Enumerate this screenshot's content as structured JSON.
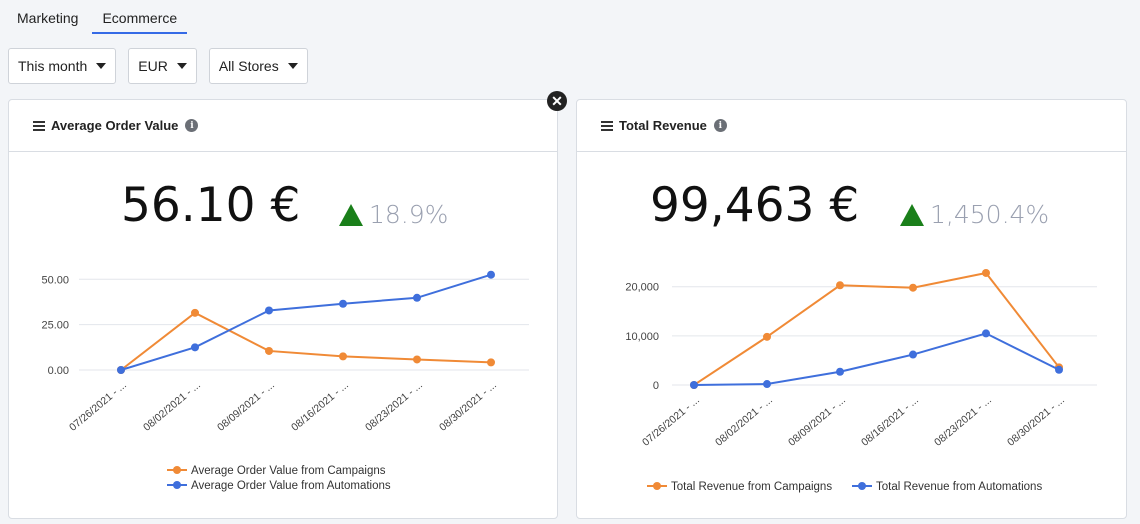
{
  "tabs": [
    {
      "label": "Marketing",
      "active": false
    },
    {
      "label": "Ecommerce",
      "active": true
    }
  ],
  "filters": {
    "period": "This month",
    "currency": "EUR",
    "stores": "All Stores"
  },
  "icons": {
    "close": "close-icon",
    "list": "list-icon",
    "info": "info-icon",
    "trend_up": "triangle-up-icon"
  },
  "colors": {
    "campaigns": "#f08a36",
    "automations": "#3f6fdc",
    "positive": "#1a7f1a"
  },
  "cards": {
    "aov": {
      "title": "Average Order Value",
      "value": "56.10 €",
      "delta": "18.9%"
    },
    "revenue": {
      "title": "Total Revenue",
      "value": "99,463 €",
      "delta": "1,450.4%"
    }
  },
  "chart_data": [
    {
      "type": "line",
      "title": "Average Order Value",
      "categories": [
        "07/26/2021 - ...",
        "08/02/2021 - ...",
        "08/09/2021 - ...",
        "08/16/2021 - ...",
        "08/23/2021 - ...",
        "08/30/2021 - ..."
      ],
      "series": [
        {
          "name": "Average Order Value from Campaigns",
          "values": [
            0,
            31.5,
            10.5,
            7.5,
            5.8,
            4.2
          ]
        },
        {
          "name": "Average Order Value from Automations",
          "values": [
            0,
            12.5,
            32.8,
            36.5,
            39.8,
            52.5
          ]
        }
      ],
      "yticks": [
        "0.00",
        "25.00",
        "50.00"
      ],
      "ylim": [
        0,
        54
      ],
      "grid": true,
      "legend": "bottom-stacked"
    },
    {
      "type": "line",
      "title": "Total Revenue",
      "categories": [
        "07/26/2021 - ...",
        "08/02/2021 - ...",
        "08/09/2021 - ...",
        "08/16/2021 - ...",
        "08/23/2021 - ...",
        "08/30/2021 - ..."
      ],
      "series": [
        {
          "name": "Total Revenue from Campaigns",
          "values": [
            0,
            9800,
            20300,
            19800,
            22800,
            3600
          ]
        },
        {
          "name": "Total Revenue from Automations",
          "values": [
            0,
            200,
            2700,
            6200,
            10500,
            3100
          ]
        }
      ],
      "yticks": [
        "0",
        "10,000",
        "20,000"
      ],
      "ylim": [
        0,
        23000
      ],
      "grid": true,
      "legend": "bottom-inline"
    }
  ]
}
